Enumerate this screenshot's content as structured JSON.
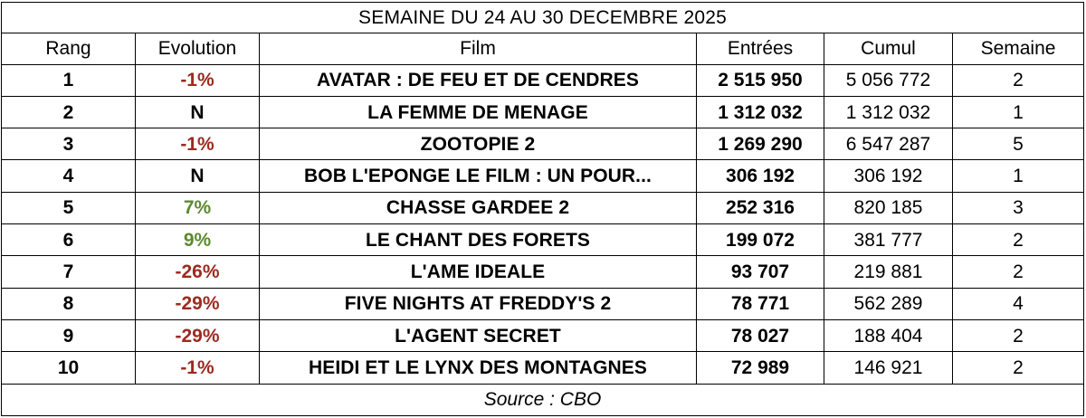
{
  "title": "SEMAINE DU 24 AU 30 DECEMBRE 2025",
  "headers": {
    "rank": "Rang",
    "evolution": "Evolution",
    "film": "Film",
    "entries": "Entrées",
    "cumul": "Cumul",
    "week": "Semaine"
  },
  "rows": [
    {
      "rank": "1",
      "evolution": "-1%",
      "film": "AVATAR : DE FEU ET DE CENDRES",
      "entries": "2 515 950",
      "cumul": "5 056 772",
      "week": "2"
    },
    {
      "rank": "2",
      "evolution": "N",
      "film": "LA FEMME DE MENAGE",
      "entries": "1 312 032",
      "cumul": "1 312 032",
      "week": "1"
    },
    {
      "rank": "3",
      "evolution": "-1%",
      "film": "ZOOTOPIE 2",
      "entries": "1 269 290",
      "cumul": "6 547 287",
      "week": "5"
    },
    {
      "rank": "4",
      "evolution": "N",
      "film": "BOB L'EPONGE LE FILM : UN POUR...",
      "entries": "306 192",
      "cumul": "306 192",
      "week": "1"
    },
    {
      "rank": "5",
      "evolution": "7%",
      "film": "CHASSE GARDEE 2",
      "entries": "252 316",
      "cumul": "820 185",
      "week": "3"
    },
    {
      "rank": "6",
      "evolution": "9%",
      "film": "LE CHANT DES FORETS",
      "entries": "199 072",
      "cumul": "381 777",
      "week": "2"
    },
    {
      "rank": "7",
      "evolution": "-26%",
      "film": "L'AME IDEALE",
      "entries": "93 707",
      "cumul": "219 881",
      "week": "2"
    },
    {
      "rank": "8",
      "evolution": "-29%",
      "film": "FIVE NIGHTS AT FREDDY'S 2",
      "entries": "78 771",
      "cumul": "562 289",
      "week": "4"
    },
    {
      "rank": "9",
      "evolution": "-29%",
      "film": "L'AGENT SECRET",
      "entries": "78 027",
      "cumul": "188 404",
      "week": "2"
    },
    {
      "rank": "10",
      "evolution": "-1%",
      "film": "HEIDI ET LE LYNX DES MONTAGNES",
      "entries": "72 989",
      "cumul": "146 921",
      "week": "2"
    }
  ],
  "source": "Source : CBO",
  "colors": {
    "negative": "#9c2a20",
    "positive": "#5c8a2e",
    "new": "#000000"
  }
}
